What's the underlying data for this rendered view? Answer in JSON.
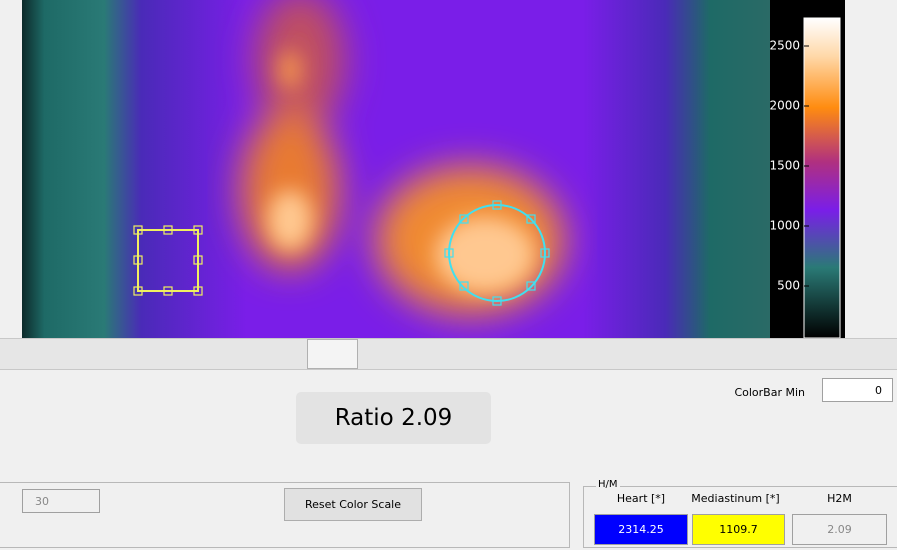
{
  "colorbar": {
    "ticks": [
      2500,
      2000,
      1500,
      1000,
      500
    ]
  },
  "controls": {
    "colorbar_min_label": "ColorBar Min",
    "colorbar_min_value": "0",
    "ratio": "Ratio 2.09",
    "frame_value": "30",
    "reset_button": "Reset Color Scale"
  },
  "hm_panel": {
    "title": "H/M",
    "headers": [
      "Heart [*]",
      "Mediastinum [*]",
      "H2M"
    ],
    "values": [
      "2314.25",
      "1109.7",
      "2.09"
    ]
  }
}
